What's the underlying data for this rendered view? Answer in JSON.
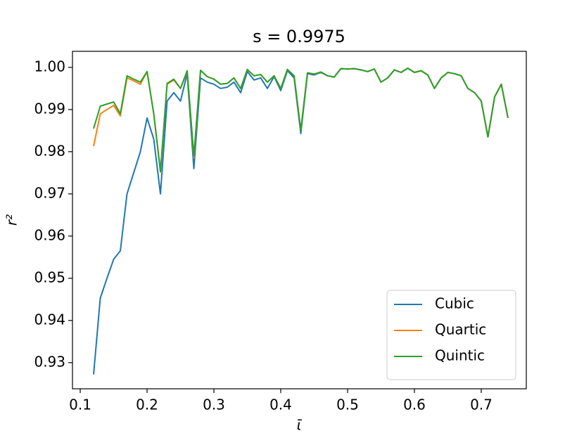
{
  "chart_data": {
    "type": "line",
    "title": "s = 0.9975",
    "x_label": "ῑ",
    "y_label": "r²",
    "x": [
      0.12,
      0.13,
      0.14,
      0.15,
      0.16,
      0.17,
      0.18,
      0.19,
      0.2,
      0.21,
      0.22,
      0.23,
      0.24,
      0.25,
      0.26,
      0.27,
      0.28,
      0.29,
      0.3,
      0.31,
      0.32,
      0.33,
      0.34,
      0.35,
      0.36,
      0.37,
      0.38,
      0.39,
      0.4,
      0.41,
      0.42,
      0.43,
      0.44,
      0.45,
      0.46,
      0.47,
      0.48,
      0.49,
      0.5,
      0.51,
      0.52,
      0.53,
      0.54,
      0.55,
      0.56,
      0.57,
      0.58,
      0.59,
      0.6,
      0.61,
      0.62,
      0.63,
      0.64,
      0.65,
      0.66,
      0.67,
      0.68,
      0.69,
      0.7,
      0.71,
      0.72,
      0.73,
      0.74
    ],
    "series": [
      {
        "name": "Cubic",
        "color": "#1f77b4",
        "values": [
          0.9272,
          0.9453,
          0.95,
          0.9545,
          0.9565,
          0.97,
          0.975,
          0.98,
          0.988,
          0.983,
          0.97,
          0.992,
          0.994,
          0.992,
          0.9985,
          0.976,
          0.9975,
          0.9965,
          0.996,
          0.995,
          0.9953,
          0.9965,
          0.994,
          0.999,
          0.997,
          0.9975,
          0.995,
          0.9978,
          0.9945,
          0.9992,
          0.9975,
          0.9843,
          0.9985,
          0.9982,
          0.9988,
          0.998,
          0.9977,
          0.9997,
          0.9996,
          0.9997,
          0.9994,
          0.999,
          0.9996,
          0.9965,
          0.9975,
          0.9994,
          0.9988,
          0.9998,
          0.9988,
          0.9992,
          0.9982,
          0.995,
          0.9975,
          0.9988,
          0.9985,
          0.998,
          0.995,
          0.994,
          0.992,
          0.9835,
          0.993,
          0.996,
          0.988
        ]
      },
      {
        "name": "Quartic",
        "color": "#ff7f0e",
        "values": [
          0.9813,
          0.989,
          0.99,
          0.991,
          0.9885,
          0.9975,
          0.9968,
          0.996,
          0.999,
          0.989,
          0.9755,
          0.996,
          0.997,
          0.995,
          0.999,
          0.9785,
          0.9993,
          0.9978,
          0.9972,
          0.996,
          0.9962,
          0.9975,
          0.995,
          0.9995,
          0.998,
          0.9983,
          0.9965,
          0.998,
          0.995,
          0.9995,
          0.998,
          0.985,
          0.9987,
          0.9984,
          0.9989,
          0.998,
          0.9977,
          0.9997,
          0.9996,
          0.9997,
          0.9994,
          0.999,
          0.9996,
          0.9965,
          0.9975,
          0.9994,
          0.9988,
          0.9998,
          0.9988,
          0.9992,
          0.9982,
          0.995,
          0.9975,
          0.9988,
          0.9985,
          0.998,
          0.995,
          0.994,
          0.992,
          0.9835,
          0.993,
          0.996,
          0.988
        ]
      },
      {
        "name": "Quintic",
        "color": "#2ca02c",
        "values": [
          0.9855,
          0.9908,
          0.9913,
          0.9918,
          0.989,
          0.998,
          0.9972,
          0.9965,
          0.999,
          0.989,
          0.9752,
          0.9962,
          0.9972,
          0.995,
          0.9992,
          0.979,
          0.9993,
          0.9978,
          0.9972,
          0.996,
          0.9962,
          0.9975,
          0.995,
          0.9995,
          0.998,
          0.9983,
          0.9965,
          0.998,
          0.995,
          0.9995,
          0.998,
          0.985,
          0.9987,
          0.9984,
          0.9989,
          0.998,
          0.9977,
          0.9997,
          0.9996,
          0.9997,
          0.9994,
          0.999,
          0.9996,
          0.9965,
          0.9975,
          0.9994,
          0.9988,
          0.9998,
          0.9988,
          0.9992,
          0.9982,
          0.995,
          0.9975,
          0.9988,
          0.9985,
          0.998,
          0.995,
          0.994,
          0.992,
          0.9835,
          0.993,
          0.996,
          0.988
        ]
      }
    ],
    "xlim": [
      0.0884,
      0.7674
    ],
    "ylim": [
      0.9238,
      1.0038
    ],
    "xticks": [
      0.1,
      0.2,
      0.3,
      0.4,
      0.5,
      0.6,
      0.7
    ],
    "yticks": [
      0.93,
      0.94,
      0.95,
      0.96,
      0.97,
      0.98,
      0.99,
      {
        "value": 1,
        "label": "1.00"
      }
    ],
    "grid": false,
    "legend": "lower right"
  }
}
